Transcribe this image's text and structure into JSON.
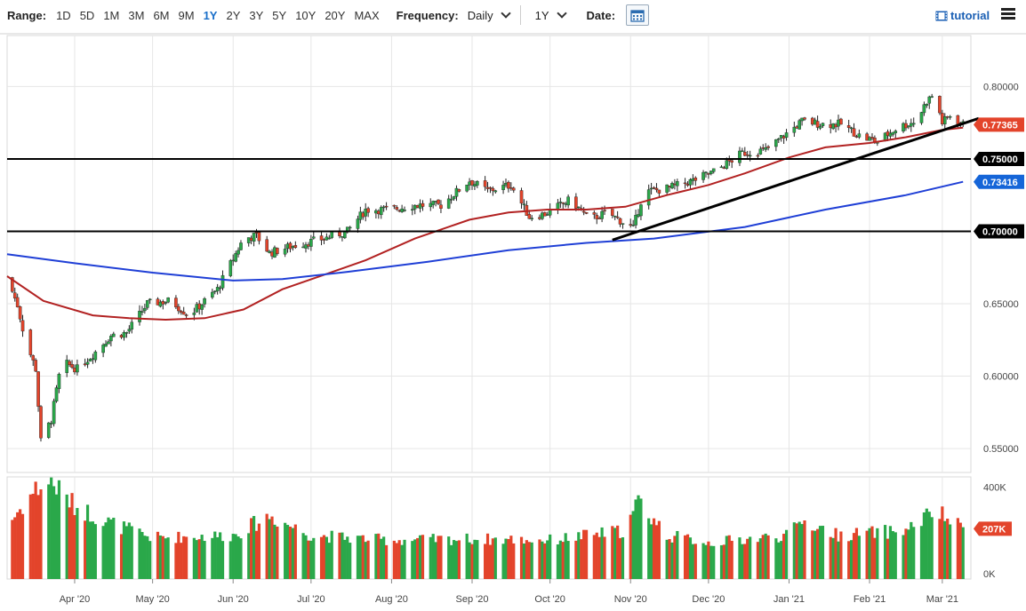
{
  "toolbar": {
    "range_label": "Range:",
    "ranges": [
      "1D",
      "5D",
      "1M",
      "3M",
      "6M",
      "9M",
      "1Y",
      "2Y",
      "3Y",
      "5Y",
      "10Y",
      "20Y",
      "MAX"
    ],
    "active_range": "1Y",
    "frequency_label": "Frequency:",
    "frequency_value": "Daily",
    "period_value": "1Y",
    "date_label": "Date:",
    "tutorial_label": "tutorial"
  },
  "colors": {
    "up": "#2aa84a",
    "down": "#e3442b",
    "ma_short": "#b22222",
    "ma_long": "#1f3fd6",
    "level_line": "#000000",
    "last_price_tag": "#e3442b",
    "ma_tag": "#1565d8"
  },
  "chart_data": {
    "type": "candlestick",
    "y_ticks": [
      "0.80000",
      "0.75000",
      "0.70000",
      "0.65000",
      "0.60000",
      "0.55000"
    ],
    "y_tick_values": [
      0.8,
      0.75,
      0.7,
      0.65,
      0.6,
      0.55
    ],
    "ylim": [
      0.5335,
      0.8352
    ],
    "x_tick_labels": [
      "Apr '20",
      "May '20",
      "Jun '20",
      "Jul '20",
      "Aug '20",
      "Sep '20",
      "Oct '20",
      "Nov '20",
      "Dec '20",
      "Jan '21",
      "Feb '21",
      "Mar '21"
    ],
    "x_range": [
      "2020-03-06",
      "2021-03-12"
    ],
    "x_ticks": [
      "2020-04-01",
      "2020-05-01",
      "2020-06-01",
      "2020-07-01",
      "2020-08-01",
      "2020-09-01",
      "2020-10-01",
      "2020-11-01",
      "2020-12-01",
      "2021-01-01",
      "2021-02-01",
      "2021-03-01"
    ],
    "close_points": [
      [
        "2020-03-06",
        0.668
      ],
      [
        "2020-03-10",
        0.649
      ],
      [
        "2020-03-13",
        0.625
      ],
      [
        "2020-03-17",
        0.605
      ],
      [
        "2020-03-19",
        0.555
      ],
      [
        "2020-03-23",
        0.57
      ],
      [
        "2020-03-27",
        0.61
      ],
      [
        "2020-04-02",
        0.605
      ],
      [
        "2020-04-08",
        0.615
      ],
      [
        "2020-04-15",
        0.628
      ],
      [
        "2020-04-21",
        0.63
      ],
      [
        "2020-04-29",
        0.65
      ],
      [
        "2020-05-08",
        0.652
      ],
      [
        "2020-05-15",
        0.642
      ],
      [
        "2020-05-26",
        0.66
      ],
      [
        "2020-06-05",
        0.695
      ],
      [
        "2020-06-10",
        0.697
      ],
      [
        "2020-06-15",
        0.685
      ],
      [
        "2020-06-24",
        0.69
      ],
      [
        "2020-07-06",
        0.695
      ],
      [
        "2020-07-15",
        0.7
      ],
      [
        "2020-07-22",
        0.715
      ],
      [
        "2020-07-31",
        0.715
      ],
      [
        "2020-08-10",
        0.718
      ],
      [
        "2020-08-20",
        0.718
      ],
      [
        "2020-08-31",
        0.735
      ],
      [
        "2020-09-07",
        0.728
      ],
      [
        "2020-09-16",
        0.732
      ],
      [
        "2020-09-23",
        0.71
      ],
      [
        "2020-09-29",
        0.712
      ],
      [
        "2020-10-09",
        0.722
      ],
      [
        "2020-10-16",
        0.708
      ],
      [
        "2020-10-23",
        0.713
      ],
      [
        "2020-11-02",
        0.702
      ],
      [
        "2020-11-06",
        0.727
      ],
      [
        "2020-11-16",
        0.73
      ],
      [
        "2020-11-25",
        0.735
      ],
      [
        "2020-12-04",
        0.742
      ],
      [
        "2020-12-14",
        0.754
      ],
      [
        "2020-12-23",
        0.756
      ],
      [
        "2021-01-06",
        0.776
      ],
      [
        "2021-01-14",
        0.774
      ],
      [
        "2021-01-21",
        0.774
      ],
      [
        "2021-01-29",
        0.765
      ],
      [
        "2021-02-04",
        0.762
      ],
      [
        "2021-02-12",
        0.772
      ],
      [
        "2021-02-19",
        0.776
      ],
      [
        "2021-02-23",
        0.79
      ],
      [
        "2021-02-26",
        0.795
      ],
      [
        "2021-03-01",
        0.775
      ],
      [
        "2021-03-04",
        0.78
      ],
      [
        "2021-03-09",
        0.7736
      ]
    ],
    "series": [
      {
        "name": "",
        "points": [
          [
            "2020-03-06",
            0.669
          ],
          [
            "2020-03-20",
            0.652
          ],
          [
            "2020-04-08",
            0.642
          ],
          [
            "2020-04-22",
            0.64
          ],
          [
            "2020-05-06",
            0.639
          ],
          [
            "2020-05-21",
            0.64
          ],
          [
            "2020-06-05",
            0.646
          ],
          [
            "2020-06-20",
            0.66
          ],
          [
            "2020-07-06",
            0.67
          ],
          [
            "2020-07-22",
            0.68
          ],
          [
            "2020-08-10",
            0.695
          ],
          [
            "2020-08-31",
            0.708
          ],
          [
            "2020-09-15",
            0.713
          ],
          [
            "2020-09-30",
            0.715
          ],
          [
            "2020-10-15",
            0.715
          ],
          [
            "2020-10-30",
            0.717
          ],
          [
            "2020-11-15",
            0.725
          ],
          [
            "2020-12-01",
            0.732
          ],
          [
            "2020-12-15",
            0.74
          ],
          [
            "2021-01-01",
            0.751
          ],
          [
            "2021-01-15",
            0.758
          ],
          [
            "2021-02-01",
            0.761
          ],
          [
            "2021-02-15",
            0.765
          ],
          [
            "2021-03-01",
            0.77
          ],
          [
            "2021-03-09",
            0.7716
          ]
        ]
      },
      {
        "name": "",
        "points": [
          [
            "2020-03-06",
            0.6842
          ],
          [
            "2020-04-01",
            0.678
          ],
          [
            "2020-05-01",
            0.6715
          ],
          [
            "2020-06-01",
            0.666
          ],
          [
            "2020-06-20",
            0.667
          ],
          [
            "2020-07-15",
            0.672
          ],
          [
            "2020-08-15",
            0.679
          ],
          [
            "2020-09-15",
            0.687
          ],
          [
            "2020-10-15",
            0.692
          ],
          [
            "2020-11-10",
            0.695
          ],
          [
            "2020-12-15",
            0.703
          ],
          [
            "2021-01-15",
            0.715
          ],
          [
            "2021-02-15",
            0.725
          ],
          [
            "2021-03-09",
            0.7342
          ]
        ]
      }
    ],
    "trendline": [
      [
        "2020-10-25",
        0.694
      ],
      [
        "2021-03-15",
        0.778
      ]
    ],
    "horizontal_levels": [
      0.75,
      0.7
    ],
    "price_tags": [
      {
        "label": "0.77365",
        "value": 0.77365,
        "kind": "last"
      },
      {
        "label": "0.75000",
        "value": 0.75,
        "kind": "level"
      },
      {
        "label": "0.73416",
        "value": 0.73416,
        "kind": "ma"
      },
      {
        "label": "0.70000",
        "value": 0.7,
        "kind": "level"
      }
    ],
    "volume": {
      "ticks": [
        "400K",
        "0K"
      ],
      "tick_values": [
        400000,
        0
      ],
      "ylim": [
        0,
        420000
      ],
      "last_label": "207K",
      "last_value": 207000,
      "profile": [
        [
          "2020-03-06",
          220000
        ],
        [
          "2020-03-17",
          370000
        ],
        [
          "2020-03-23",
          400000
        ],
        [
          "2020-04-01",
          300000
        ],
        [
          "2020-04-15",
          230000
        ],
        [
          "2020-05-01",
          170000
        ],
        [
          "2020-06-01",
          180000
        ],
        [
          "2020-06-15",
          260000
        ],
        [
          "2020-07-01",
          180000
        ],
        [
          "2020-08-01",
          160000
        ],
        [
          "2020-09-01",
          165000
        ],
        [
          "2020-10-01",
          160000
        ],
        [
          "2020-10-30",
          200000
        ],
        [
          "2020-11-04",
          320000
        ],
        [
          "2020-11-15",
          180000
        ],
        [
          "2020-12-01",
          150000
        ],
        [
          "2021-01-01",
          180000
        ],
        [
          "2021-01-06",
          240000
        ],
        [
          "2021-01-20",
          180000
        ],
        [
          "2021-02-01",
          190000
        ],
        [
          "2021-02-15",
          200000
        ],
        [
          "2021-02-26",
          280000
        ],
        [
          "2021-03-09",
          207000
        ]
      ]
    }
  }
}
